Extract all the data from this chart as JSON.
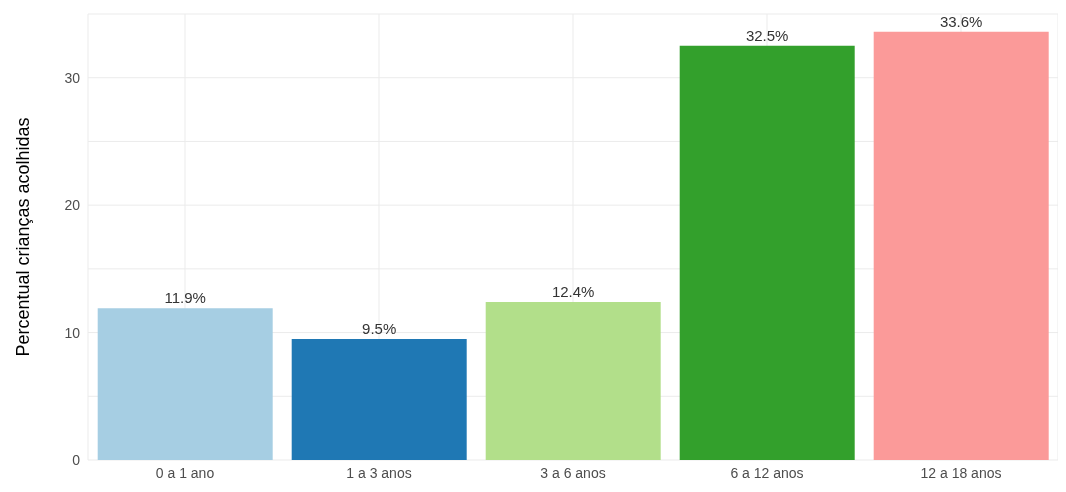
{
  "chart_data": {
    "type": "bar",
    "ylabel": "Percentual crianças acolhidas",
    "categories": [
      "0 a 1 ano",
      "1 a 3 anos",
      "3 a 6 anos",
      "6 a 12 anos",
      "12 a 18 anos"
    ],
    "values": [
      11.9,
      9.5,
      12.4,
      32.5,
      33.6
    ],
    "colors": [
      "#a6cee3",
      "#1f78b4",
      "#b2df8a",
      "#33a02c",
      "#fb9a99"
    ],
    "value_labels": [
      "11.9%",
      "9.5%",
      "12.4%",
      "32.5%",
      "33.6%"
    ],
    "ylim": [
      0,
      35
    ],
    "yticks": [
      0,
      {
        "value": 5,
        "label": null
      },
      10,
      {
        "value": 15,
        "label": null
      },
      20,
      {
        "value": 25,
        "label": null
      },
      30,
      {
        "value": 35,
        "label": null
      }
    ],
    "grid": true
  }
}
